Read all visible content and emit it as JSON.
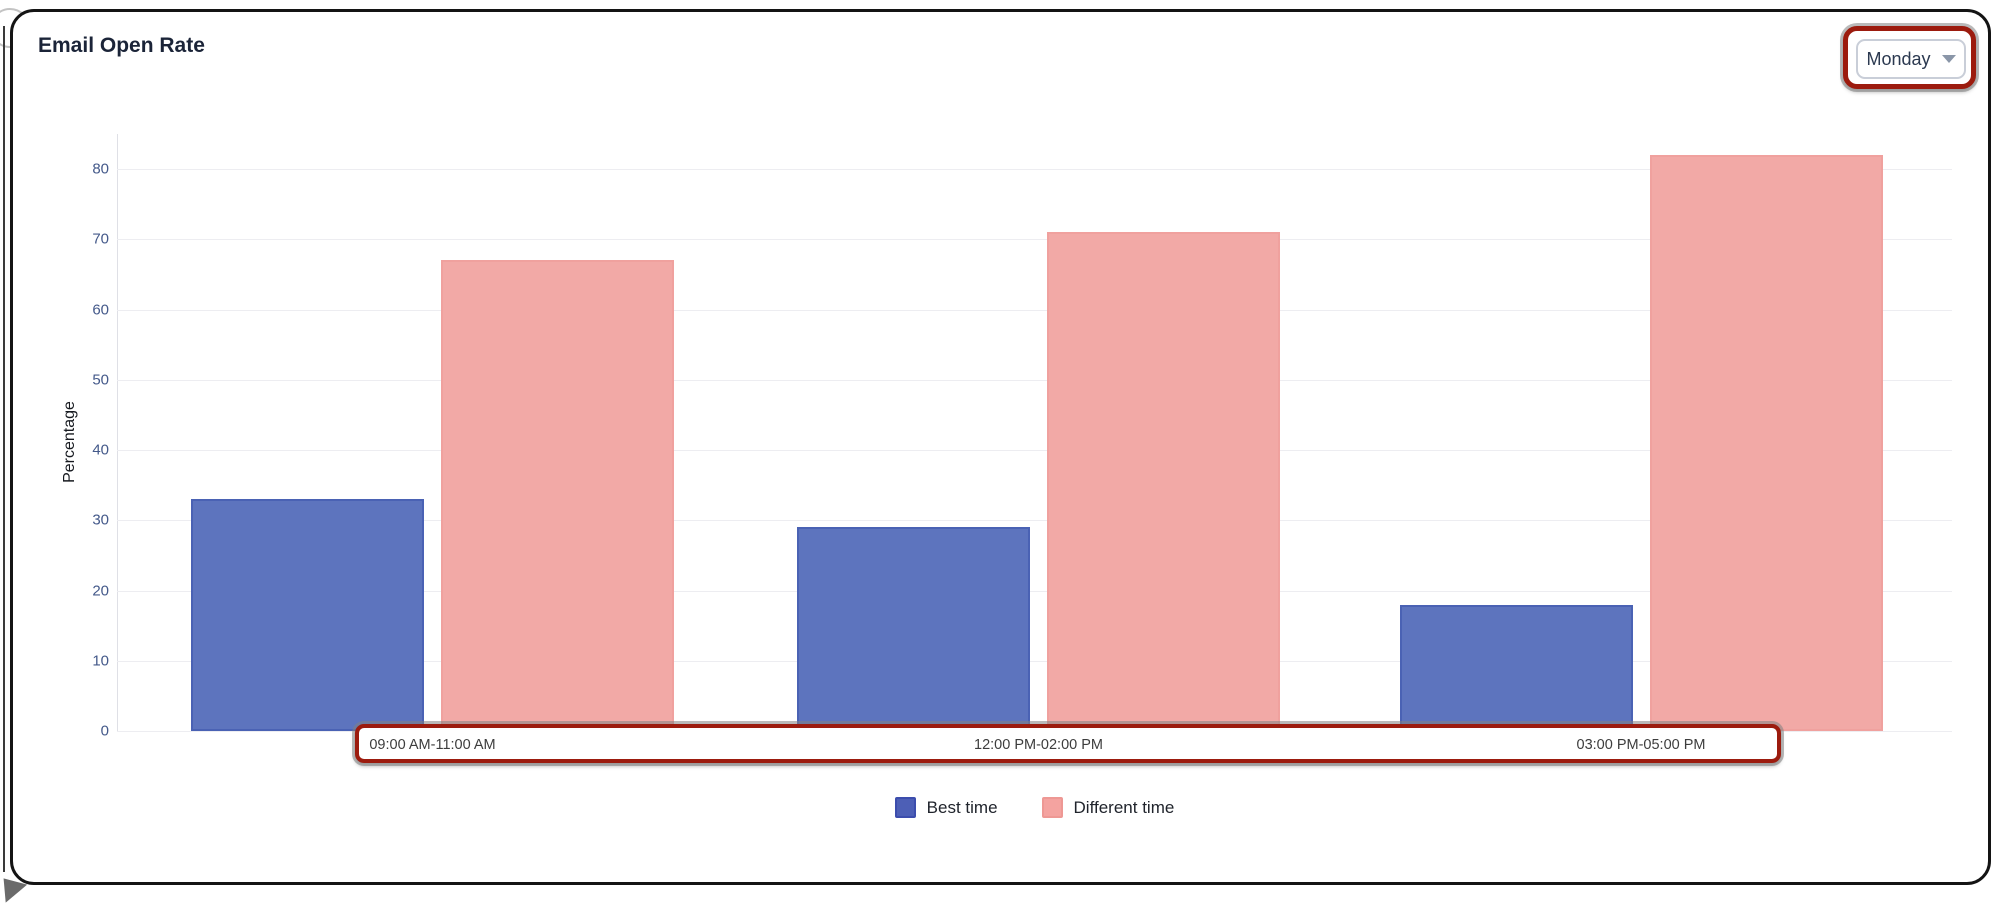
{
  "page": {
    "title": "Email Open Rate"
  },
  "day_selector": {
    "value": "Monday"
  },
  "annotations": {
    "highlight_color": "#9c1b0e",
    "highlighted": [
      "day-selector",
      "x-axis-label-strip"
    ]
  },
  "chart_data": {
    "type": "bar",
    "title": "Email Open Rate",
    "categories": [
      "09:00 AM-11:00 AM",
      "12:00 PM-02:00 PM",
      "03:00 PM-05:00 PM"
    ],
    "series": [
      {
        "name": "Best time",
        "values": [
          33,
          29,
          18
        ],
        "fill": "#5d74be",
        "stroke": "#4a62b4",
        "legend_fill": "#4d5fb6",
        "legend_stroke": "#3c4dad"
      },
      {
        "name": "Different time",
        "values": [
          67,
          71,
          82
        ],
        "fill": "#f2a9a6",
        "stroke": "#f0a19e",
        "legend_fill": "#f4a3a0",
        "legend_stroke": "#ee9894"
      }
    ],
    "ylabel": "Percentage",
    "yticks": [
      0,
      10,
      20,
      30,
      40,
      50,
      60,
      70,
      80
    ],
    "ylim": [
      0,
      85
    ],
    "grid": true,
    "legend_position": "bottom"
  }
}
